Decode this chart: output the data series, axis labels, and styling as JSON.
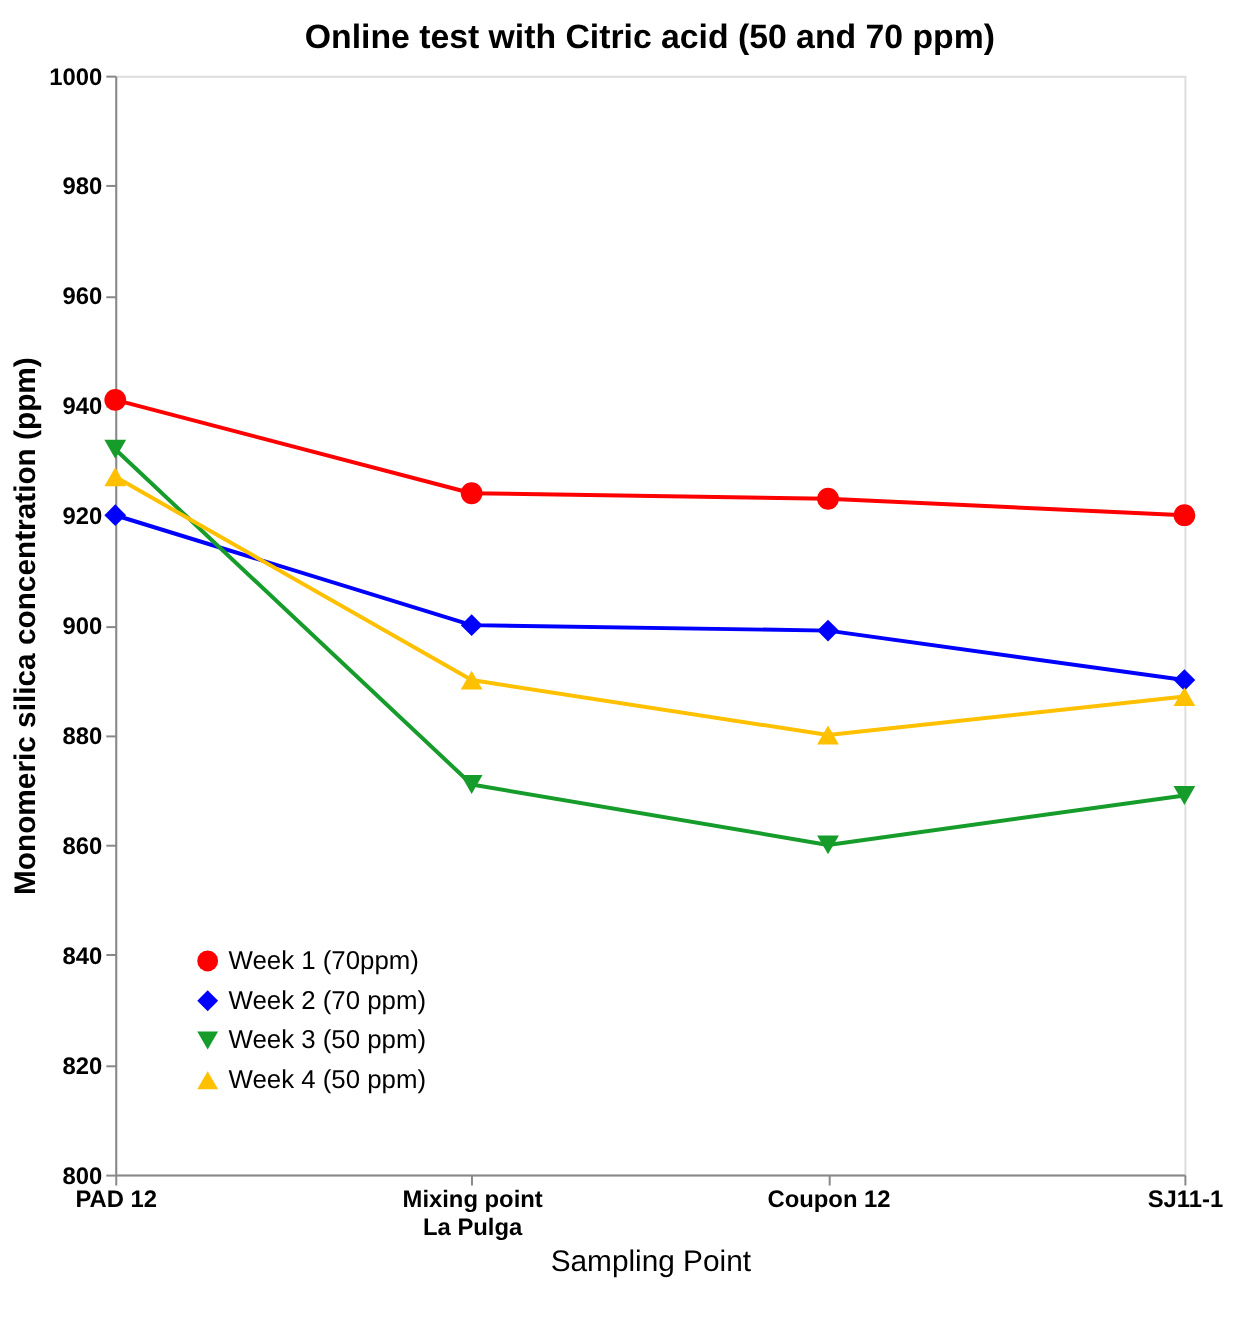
{
  "chart_data": {
    "type": "line",
    "title": "Online test with Citric acid (50 and 70 ppm)",
    "xlabel": "Sampling Point",
    "ylabel": "Monomeric silica concentration (ppm)",
    "categories": [
      "PAD 12",
      "Mixing point\nLa Pulga",
      "Coupon  12",
      "SJ11-1"
    ],
    "series": [
      {
        "name": "Week 1 (70ppm)",
        "color": "#ff0000",
        "marker": "circle",
        "values": [
          941,
          924,
          923,
          920
        ]
      },
      {
        "name": "Week 2 (70 ppm)",
        "color": "#0000ff",
        "marker": "diamond",
        "values": [
          920,
          900,
          899,
          890
        ]
      },
      {
        "name": "Week 3 (50 ppm)",
        "color": "#169c2a",
        "marker": "triangle-down",
        "values": [
          932,
          871,
          860,
          869
        ]
      },
      {
        "name": "Week 4 (50 ppm)",
        "color": "#ffc000",
        "marker": "triangle",
        "values": [
          927,
          890,
          880,
          887
        ]
      }
    ],
    "ylim": [
      800,
      1000
    ],
    "yticks": [
      800,
      820,
      840,
      860,
      880,
      900,
      920,
      940,
      960,
      980,
      1000
    ],
    "grid": false,
    "legend": "bottom left",
    "line_style": "solid"
  }
}
